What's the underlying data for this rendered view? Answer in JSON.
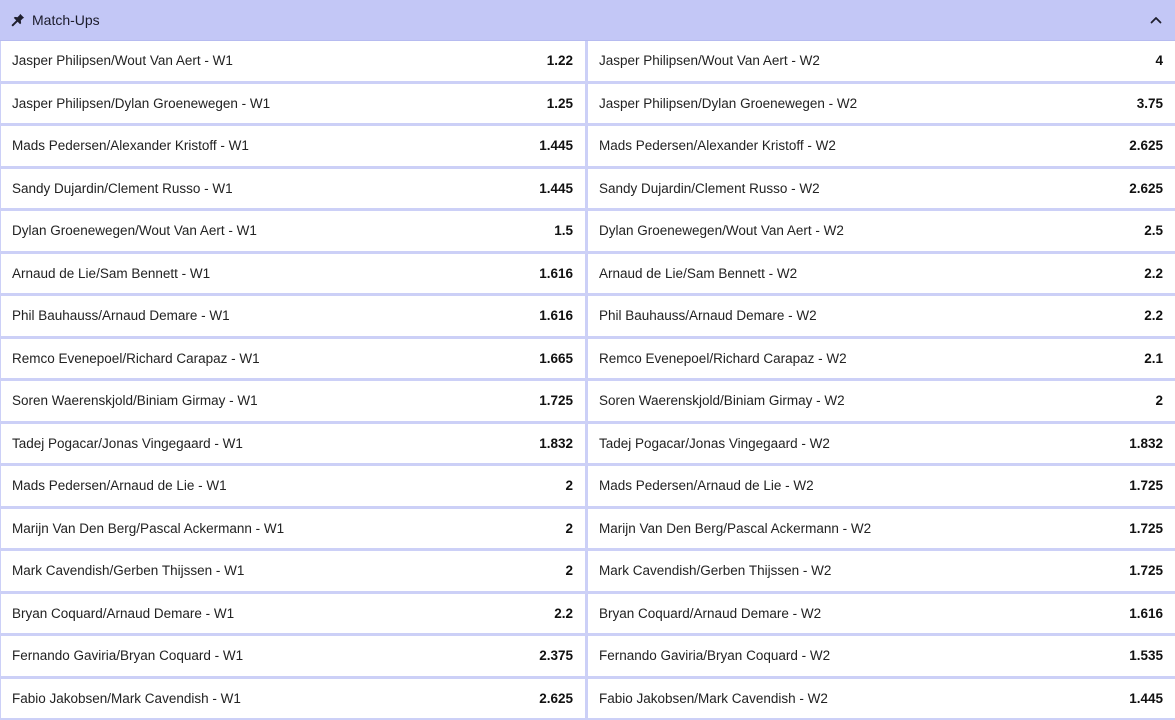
{
  "header": {
    "title": "Match-Ups",
    "pin_icon": "pin-icon",
    "collapse_icon": "chevron-up-icon"
  },
  "rows": [
    {
      "left": {
        "name": "Jasper Philipsen/Wout Van Aert - W1",
        "odds": "1.22"
      },
      "right": {
        "name": "Jasper Philipsen/Wout Van Aert - W2",
        "odds": "4"
      }
    },
    {
      "left": {
        "name": "Jasper Philipsen/Dylan Groenewegen - W1",
        "odds": "1.25"
      },
      "right": {
        "name": "Jasper Philipsen/Dylan Groenewegen - W2",
        "odds": "3.75"
      }
    },
    {
      "left": {
        "name": "Mads Pedersen/Alexander Kristoff - W1",
        "odds": "1.445"
      },
      "right": {
        "name": "Mads Pedersen/Alexander Kristoff - W2",
        "odds": "2.625"
      }
    },
    {
      "left": {
        "name": "Sandy Dujardin/Clement Russo - W1",
        "odds": "1.445"
      },
      "right": {
        "name": "Sandy Dujardin/Clement Russo - W2",
        "odds": "2.625"
      }
    },
    {
      "left": {
        "name": "Dylan Groenewegen/Wout Van Aert - W1",
        "odds": "1.5"
      },
      "right": {
        "name": "Dylan Groenewegen/Wout Van Aert - W2",
        "odds": "2.5"
      }
    },
    {
      "left": {
        "name": "Arnaud de Lie/Sam Bennett - W1",
        "odds": "1.616"
      },
      "right": {
        "name": "Arnaud de Lie/Sam Bennett - W2",
        "odds": "2.2"
      }
    },
    {
      "left": {
        "name": "Phil Bauhauss/Arnaud Demare - W1",
        "odds": "1.616"
      },
      "right": {
        "name": "Phil Bauhauss/Arnaud Demare - W2",
        "odds": "2.2"
      }
    },
    {
      "left": {
        "name": "Remco Evenepoel/Richard Carapaz - W1",
        "odds": "1.665"
      },
      "right": {
        "name": "Remco Evenepoel/Richard Carapaz - W2",
        "odds": "2.1"
      }
    },
    {
      "left": {
        "name": "Soren Waerenskjold/Biniam Girmay - W1",
        "odds": "1.725"
      },
      "right": {
        "name": "Soren Waerenskjold/Biniam Girmay - W2",
        "odds": "2"
      }
    },
    {
      "left": {
        "name": "Tadej Pogacar/Jonas Vingegaard - W1",
        "odds": "1.832"
      },
      "right": {
        "name": "Tadej Pogacar/Jonas Vingegaard - W2",
        "odds": "1.832"
      }
    },
    {
      "left": {
        "name": "Mads Pedersen/Arnaud de Lie - W1",
        "odds": "2"
      },
      "right": {
        "name": "Mads Pedersen/Arnaud de Lie - W2",
        "odds": "1.725"
      }
    },
    {
      "left": {
        "name": "Marijn Van Den Berg/Pascal Ackermann - W1",
        "odds": "2"
      },
      "right": {
        "name": "Marijn Van Den Berg/Pascal Ackermann - W2",
        "odds": "1.725"
      }
    },
    {
      "left": {
        "name": "Mark Cavendish/Gerben Thijssen - W1",
        "odds": "2"
      },
      "right": {
        "name": "Mark Cavendish/Gerben Thijssen - W2",
        "odds": "1.725"
      }
    },
    {
      "left": {
        "name": "Bryan Coquard/Arnaud Demare - W1",
        "odds": "2.2"
      },
      "right": {
        "name": "Bryan Coquard/Arnaud Demare - W2",
        "odds": "1.616"
      }
    },
    {
      "left": {
        "name": "Fernando Gaviria/Bryan Coquard - W1",
        "odds": "2.375"
      },
      "right": {
        "name": "Fernando Gaviria/Bryan Coquard - W2",
        "odds": "1.535"
      }
    },
    {
      "left": {
        "name": "Fabio Jakobsen/Mark Cavendish - W1",
        "odds": "2.625"
      },
      "right": {
        "name": "Fabio Jakobsen/Mark Cavendish - W2",
        "odds": "1.445"
      }
    }
  ]
}
